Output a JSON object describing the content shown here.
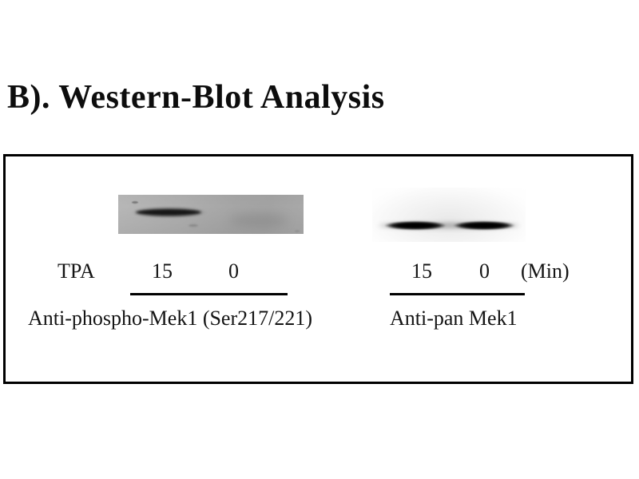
{
  "title": "B). Western-Blot Analysis",
  "colors": {
    "background": "#ffffff",
    "text": "#141414",
    "panel_border": "#000000",
    "left_blot_background": "#aaaaaa",
    "band": "#0d0d0d"
  },
  "figure": {
    "left_group": {
      "antibody": "phospho-Mek1",
      "tpa_label": "TPA",
      "time_15": "15",
      "time_0": "0",
      "caption": "Anti-phospho-Mek1 (Ser217/221)",
      "band_15min": "strong",
      "band_0min": "absent"
    },
    "right_group": {
      "antibody": "pan-Mek1",
      "time_15": "15",
      "time_0": "0",
      "unit_label": "(Min)",
      "caption": "Anti-pan Mek1",
      "band_15min": "strong",
      "band_0min": "strong"
    }
  }
}
